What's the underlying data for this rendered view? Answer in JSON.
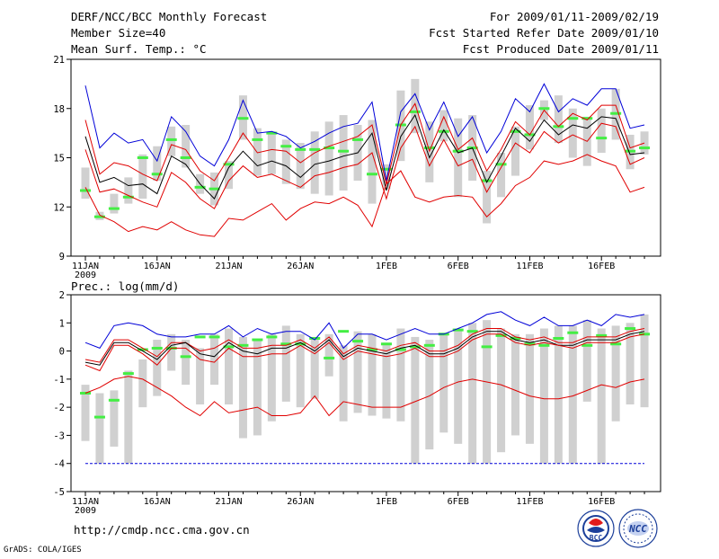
{
  "header": {
    "title": "DERF/NCC/BCC Monthly Forecast",
    "member_size": "Member Size=40",
    "period": "For 2009/01/11-2009/02/19",
    "start_date": "Fcst Started Refer Date 2009/01/10",
    "produced_date": "Fcst Produced Date 2009/01/11"
  },
  "footer": {
    "url": "http://cmdp.ncc.cma.gov.cn",
    "grads_credit": "GrADS: COLA/IGES",
    "logo_bcc": "BCC",
    "logo_ncc": "NCC"
  },
  "colors": {
    "box": "#d0d0d0",
    "median": "#000000",
    "quartile": "#e00000",
    "extreme": "#0000d8",
    "observed": "#44ee44",
    "axis": "#000000"
  },
  "chart_data": [
    {
      "type": "line",
      "title": "Mean Surf. Temp.: °C",
      "xlabel": "",
      "ylabel": "",
      "x_first_day": "2009-01-11",
      "x_tick_labels": [
        "11JAN",
        "16JAN",
        "21JAN",
        "26JAN",
        "1FEB",
        "6FEB",
        "11FEB",
        "16FEB"
      ],
      "x_year_label": "2009",
      "ylim": [
        9,
        21
      ],
      "y_ticks": [
        9,
        12,
        15,
        18,
        21
      ],
      "days": 40,
      "series": [
        {
          "name": "max",
          "values": [
            19.4,
            15.6,
            16.5,
            15.9,
            16.1,
            14.8,
            17.5,
            16.6,
            15.1,
            14.5,
            16.1,
            18.5,
            16.5,
            16.6,
            16.3,
            15.6,
            16.0,
            16.5,
            16.9,
            17.1,
            18.4,
            13.6,
            17.8,
            18.9,
            16.7,
            18.4,
            16.3,
            17.5,
            15.3,
            16.6,
            18.6,
            17.8,
            19.5,
            17.8,
            18.6,
            18.2,
            19.2,
            19.2,
            16.8,
            17.0
          ]
        },
        {
          "name": "q75",
          "values": [
            17.3,
            14.0,
            14.7,
            14.5,
            14.0,
            13.6,
            15.8,
            15.5,
            14.2,
            13.6,
            15.0,
            16.5,
            15.3,
            15.5,
            15.4,
            14.7,
            15.3,
            15.7,
            16.0,
            16.3,
            17.0,
            13.4,
            17.0,
            18.3,
            15.4,
            17.5,
            15.5,
            16.2,
            14.2,
            15.5,
            17.2,
            16.4,
            17.9,
            16.9,
            17.7,
            17.3,
            18.2,
            18.2,
            15.6,
            15.9
          ]
        },
        {
          "name": "median",
          "values": [
            16.3,
            13.5,
            13.8,
            13.3,
            13.4,
            12.8,
            15.1,
            14.6,
            13.4,
            12.5,
            14.4,
            15.4,
            14.5,
            14.8,
            14.5,
            13.8,
            14.6,
            14.8,
            15.1,
            15.3,
            16.5,
            13.0,
            16.3,
            17.6,
            15.0,
            16.7,
            15.3,
            15.6,
            13.5,
            15.1,
            16.8,
            16.0,
            17.3,
            16.4,
            17.0,
            16.8,
            17.5,
            17.4,
            15.2,
            15.3
          ]
        },
        {
          "name": "q25",
          "values": [
            15.5,
            12.9,
            13.1,
            12.7,
            12.3,
            12.0,
            14.1,
            13.5,
            12.5,
            11.9,
            13.6,
            14.5,
            13.8,
            14.0,
            13.6,
            13.2,
            13.9,
            14.1,
            14.4,
            14.6,
            15.3,
            12.5,
            15.6,
            16.9,
            14.5,
            16.1,
            14.5,
            14.9,
            12.9,
            14.4,
            15.9,
            15.3,
            16.6,
            15.9,
            16.4,
            16.0,
            17.1,
            16.9,
            14.6,
            15.0
          ]
        },
        {
          "name": "min",
          "values": [
            13.2,
            11.5,
            11.1,
            10.5,
            10.8,
            10.6,
            11.1,
            10.6,
            10.3,
            10.2,
            11.3,
            11.2,
            11.7,
            12.2,
            11.2,
            11.9,
            12.3,
            12.2,
            12.6,
            12.1,
            10.8,
            13.4,
            14.2,
            12.6,
            12.3,
            12.6,
            12.7,
            12.6,
            11.4,
            12.2,
            13.3,
            13.8,
            14.8,
            14.6,
            14.8,
            15.2,
            14.8,
            14.5,
            12.9,
            13.2
          ]
        }
      ],
      "boxes": {
        "low": [
          12.5,
          11.2,
          11.6,
          12.2,
          12.5,
          13.6,
          15.1,
          14.4,
          12.8,
          12.1,
          13.1,
          16.1,
          13.9,
          14.0,
          13.4,
          13.1,
          12.8,
          12.7,
          13.0,
          13.6,
          12.2,
          13.1,
          14.8,
          16.5,
          13.5,
          16.0,
          12.6,
          13.6,
          11.0,
          12.6,
          13.9,
          15.5,
          17.3,
          15.9,
          15.0,
          14.5,
          15.3,
          16.1,
          14.3,
          15.2
        ],
        "high": [
          14.4,
          11.7,
          12.8,
          13.8,
          15.2,
          15.7,
          16.9,
          17.0,
          14.0,
          14.1,
          14.8,
          18.8,
          16.8,
          16.6,
          16.1,
          15.9,
          16.6,
          17.2,
          17.6,
          17.0,
          17.3,
          14.6,
          19.1,
          19.8,
          17.2,
          17.9,
          17.4,
          17.6,
          14.2,
          15.3,
          16.9,
          18.2,
          18.5,
          18.8,
          18.0,
          17.5,
          18.0,
          19.2,
          16.4,
          16.6
        ]
      },
      "observed": [
        13.0,
        11.4,
        11.9,
        12.6,
        15.0,
        14.0,
        16.1,
        15.0,
        13.2,
        13.1,
        14.6,
        17.4,
        16.1,
        16.5,
        15.7,
        15.5,
        15.5,
        15.6,
        15.4,
        16.1,
        14.0,
        14.3,
        17.0,
        17.8,
        15.6,
        16.6,
        15.4,
        15.6,
        13.6,
        14.6,
        16.6,
        16.4,
        18.0,
        16.9,
        17.4,
        17.4,
        16.2,
        17.7,
        15.4,
        15.6
      ]
    },
    {
      "type": "line",
      "title": "Prec.: log(mm/d)",
      "xlabel": "",
      "ylabel": "",
      "x_first_day": "2009-01-11",
      "x_tick_labels": [
        "11JAN",
        "16JAN",
        "21JAN",
        "26JAN",
        "1FEB",
        "6FEB",
        "11FEB",
        "16FEB"
      ],
      "x_year_label": "2009",
      "ylim": [
        -5,
        2
      ],
      "y_ticks": [
        -5,
        -4,
        -3,
        -2,
        -1,
        0,
        1,
        2
      ],
      "days": 40,
      "series": [
        {
          "name": "max",
          "values": [
            0.3,
            0.1,
            0.9,
            1.0,
            0.9,
            0.6,
            0.5,
            0.5,
            0.6,
            0.6,
            0.9,
            0.5,
            0.8,
            0.6,
            0.7,
            0.7,
            0.4,
            1.0,
            0.1,
            0.6,
            0.6,
            0.4,
            0.6,
            0.8,
            0.6,
            0.6,
            0.8,
            1.0,
            1.3,
            1.4,
            1.1,
            0.9,
            1.2,
            0.9,
            0.9,
            1.1,
            0.9,
            1.3,
            1.2,
            1.3
          ]
        },
        {
          "name": "q75",
          "values": [
            -0.3,
            -0.4,
            0.4,
            0.4,
            0.1,
            -0.2,
            0.3,
            0.3,
            0.0,
            0.1,
            0.4,
            0.1,
            0.1,
            0.2,
            0.2,
            0.4,
            0.1,
            0.5,
            -0.1,
            0.2,
            0.1,
            0.0,
            0.2,
            0.3,
            0.0,
            0.0,
            0.2,
            0.6,
            0.8,
            0.8,
            0.5,
            0.4,
            0.5,
            0.3,
            0.3,
            0.5,
            0.5,
            0.5,
            0.7,
            0.8
          ]
        },
        {
          "name": "median",
          "values": [
            -0.4,
            -0.5,
            0.3,
            0.3,
            0.0,
            -0.3,
            0.2,
            0.3,
            -0.1,
            -0.2,
            0.3,
            0.0,
            -0.1,
            0.1,
            0.1,
            0.3,
            0.0,
            0.4,
            -0.2,
            0.1,
            0.0,
            -0.1,
            0.1,
            0.2,
            -0.1,
            -0.1,
            0.1,
            0.5,
            0.7,
            0.7,
            0.4,
            0.3,
            0.4,
            0.2,
            0.2,
            0.4,
            0.4,
            0.4,
            0.6,
            0.7
          ]
        },
        {
          "name": "q25",
          "values": [
            -0.5,
            -0.7,
            0.2,
            0.2,
            -0.1,
            -0.5,
            0.1,
            0.1,
            -0.3,
            -0.4,
            0.1,
            -0.2,
            -0.2,
            -0.1,
            -0.1,
            0.2,
            -0.1,
            0.3,
            -0.3,
            0.0,
            -0.1,
            -0.2,
            -0.1,
            0.1,
            -0.2,
            -0.2,
            0.0,
            0.4,
            0.6,
            0.6,
            0.3,
            0.2,
            0.3,
            0.2,
            0.1,
            0.3,
            0.3,
            0.3,
            0.5,
            0.6
          ]
        },
        {
          "name": "min",
          "values": [
            -1.5,
            -1.3,
            -1.0,
            -0.9,
            -1.0,
            -1.3,
            -1.6,
            -2.0,
            -2.3,
            -1.8,
            -2.2,
            -2.1,
            -2.0,
            -2.3,
            -2.3,
            -2.2,
            -1.6,
            -2.3,
            -1.8,
            -1.9,
            -2.0,
            -2.0,
            -2.0,
            -1.8,
            -1.6,
            -1.3,
            -1.1,
            -1.0,
            -1.1,
            -1.2,
            -1.4,
            -1.6,
            -1.7,
            -1.7,
            -1.6,
            -1.4,
            -1.2,
            -1.3,
            -1.1,
            -1.0
          ]
        },
        {
          "name": "floor",
          "values": [
            -4.0,
            -4.0,
            -4.0,
            -4.0,
            -4.0,
            -4.0,
            -4.0,
            -4.0,
            -4.0,
            -4.0,
            -4.0,
            -4.0,
            -4.0,
            -4.0,
            -4.0,
            -4.0,
            -4.0,
            -4.0,
            -4.0,
            -4.0,
            -4.0,
            -4.0,
            -4.0,
            -4.0,
            -4.0,
            -4.0,
            -4.0,
            -4.0,
            -4.0,
            -4.0,
            -4.0,
            -4.0,
            -4.0,
            -4.0,
            -4.0,
            -4.0,
            -4.0,
            -4.0,
            -4.0,
            -4.0
          ]
        }
      ],
      "boxes": {
        "low": [
          -3.2,
          -4.0,
          -3.4,
          -4.0,
          -2.0,
          -1.6,
          -0.7,
          -1.2,
          -1.9,
          -1.2,
          -1.9,
          -3.1,
          -3.0,
          -2.5,
          -1.8,
          -2.0,
          -1.7,
          -0.9,
          -2.5,
          -2.2,
          -2.3,
          -2.4,
          -2.5,
          -4.0,
          -3.5,
          -2.9,
          -3.3,
          -4.0,
          -4.0,
          -3.6,
          -3.0,
          -3.3,
          -4.0,
          -4.0,
          -4.0,
          -1.8,
          -4.0,
          -2.5,
          -1.9,
          -2.0
        ],
        "high": [
          -1.2,
          -1.5,
          -1.4,
          -0.7,
          -0.3,
          0.4,
          0.6,
          0.4,
          0.1,
          0.6,
          0.8,
          0.5,
          0.4,
          0.6,
          0.9,
          0.6,
          0.5,
          0.6,
          0.2,
          0.7,
          0.6,
          0.3,
          0.8,
          0.5,
          0.4,
          0.6,
          0.8,
          1.0,
          1.1,
          0.8,
          0.6,
          0.6,
          0.8,
          0.9,
          0.9,
          1.1,
          0.8,
          0.9,
          1.0,
          1.3
        ]
      },
      "observed": [
        -1.5,
        -2.35,
        -1.75,
        -0.8,
        0.05,
        0.1,
        0.1,
        -0.2,
        0.5,
        0.5,
        0.15,
        0.2,
        0.4,
        0.5,
        0.25,
        0.25,
        0.45,
        -0.25,
        0.7,
        0.35,
        0.05,
        0.25,
        0.05,
        0.15,
        0.2,
        0.6,
        0.75,
        0.7,
        0.15,
        0.55,
        0.45,
        0.25,
        0.2,
        0.45,
        0.65,
        0.2,
        0.55,
        0.25,
        0.8,
        0.6
      ]
    }
  ]
}
